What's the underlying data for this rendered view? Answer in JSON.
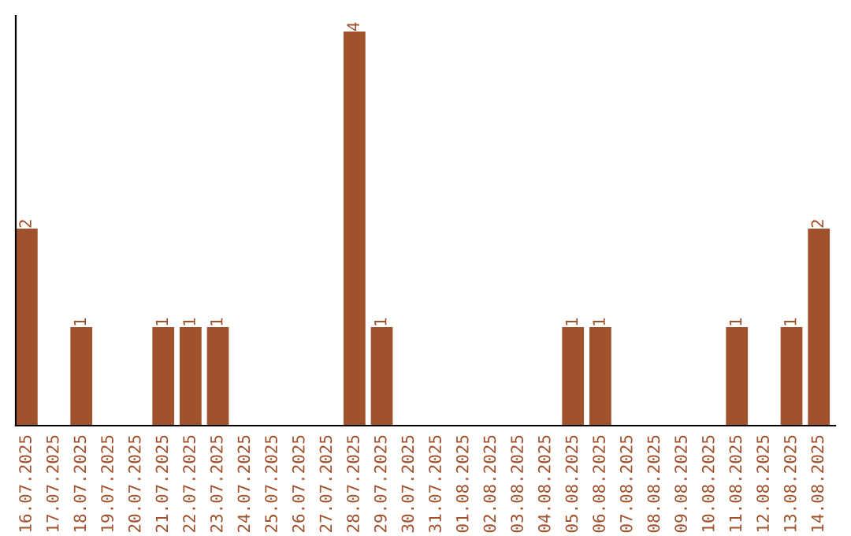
{
  "chart_data": {
    "type": "bar",
    "categories": [
      "16.07.2025",
      "17.07.2025",
      "18.07.2025",
      "19.07.2025",
      "20.07.2025",
      "21.07.2025",
      "22.07.2025",
      "23.07.2025",
      "24.07.2025",
      "25.07.2025",
      "26.07.2025",
      "27.07.2025",
      "28.07.2025",
      "29.07.2025",
      "30.07.2025",
      "31.07.2025",
      "01.08.2025",
      "02.08.2025",
      "03.08.2025",
      "04.08.2025",
      "05.08.2025",
      "06.08.2025",
      "07.08.2025",
      "08.08.2025",
      "09.08.2025",
      "10.08.2025",
      "11.08.2025",
      "12.08.2025",
      "13.08.2025",
      "14.08.2025"
    ],
    "values": [
      2,
      0,
      1,
      0,
      0,
      1,
      1,
      1,
      0,
      0,
      0,
      0,
      4,
      1,
      0,
      0,
      0,
      0,
      0,
      0,
      1,
      1,
      0,
      0,
      0,
      0,
      1,
      0,
      1,
      2
    ],
    "value_labels": [
      "2",
      null,
      "1",
      null,
      null,
      "1",
      "1",
      "1",
      null,
      null,
      null,
      null,
      "4",
      "1",
      null,
      null,
      null,
      null,
      null,
      null,
      "1",
      "1",
      null,
      null,
      null,
      null,
      "1",
      null,
      "1",
      "2"
    ],
    "color": "#a0522d",
    "ylim": [
      0,
      4.16
    ],
    "grid": false,
    "legend": false
  }
}
